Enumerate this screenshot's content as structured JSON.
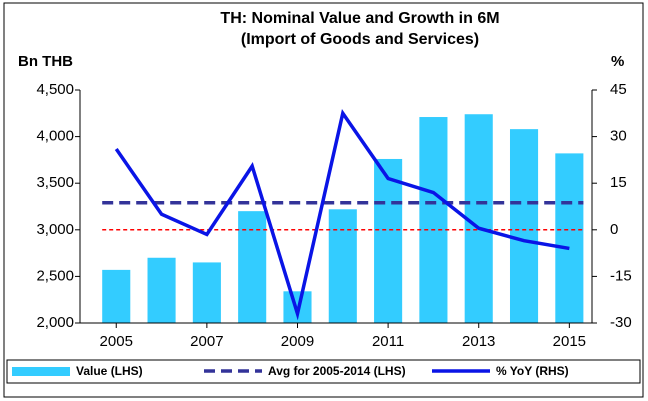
{
  "chart_data": {
    "type": "bar-line",
    "title": [
      "TH: Nominal Value and Growth in 6M",
      "(Import of Goods and Services)"
    ],
    "ylabel": "Bn THB",
    "y2label": "%",
    "x": [
      2005,
      2006,
      2007,
      2008,
      2009,
      2010,
      2011,
      2012,
      2013,
      2014,
      2015
    ],
    "xlim": [
      2004.2,
      2015.5
    ],
    "xticks": [
      2005,
      2007,
      2009,
      2011,
      2013,
      2015
    ],
    "ylim": [
      2000,
      4500
    ],
    "yticks": [
      {
        "value": 2000,
        "label": "2,000"
      },
      {
        "value": 2500,
        "label": "2,500"
      },
      {
        "value": 3000,
        "label": "3,000"
      },
      {
        "value": 3500,
        "label": "3,500"
      },
      {
        "value": 4000,
        "label": "4,000"
      },
      {
        "value": 4500,
        "label": "4,500"
      }
    ],
    "y2lim": [
      -30,
      45
    ],
    "y2ticks": [
      -30,
      -15,
      0,
      15,
      30,
      45
    ],
    "series": [
      {
        "name": "Value (LHS)",
        "type": "bar",
        "color": "#33ccff",
        "values": [
          2570,
          2700,
          2650,
          3200,
          2340,
          3220,
          3760,
          4210,
          4240,
          4080,
          3820
        ]
      },
      {
        "name": "Avg for 2005-2014 (LHS)",
        "type": "hline",
        "color": "#333399",
        "value": 3290
      },
      {
        "name": "% YoY (RHS)",
        "type": "line",
        "axis": "y2",
        "color": "#0a14e6",
        "values": [
          26,
          5,
          -1.5,
          20.5,
          -27,
          37.5,
          16.5,
          12,
          0.5,
          -3.5,
          -6
        ]
      }
    ],
    "reference_lines": [
      {
        "axis": "y2",
        "value": 0,
        "color": "#ff0000"
      }
    ]
  }
}
